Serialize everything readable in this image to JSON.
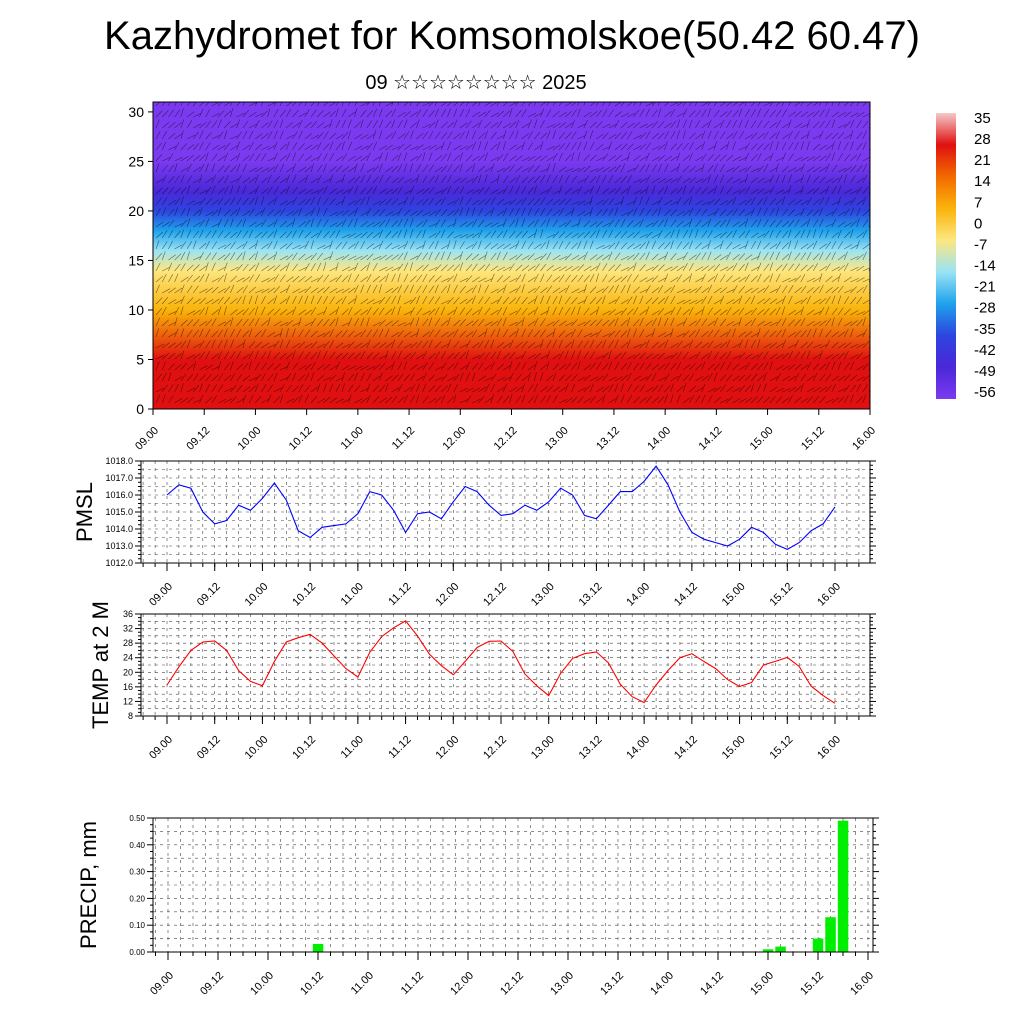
{
  "header": {
    "title": "Kazhydromet for Komsomolskoe(50.42 60.47)",
    "subtitle": "09 ☆☆☆☆☆☆☆☆ 2025"
  },
  "chart_data": [
    {
      "type": "heatmap",
      "title": "",
      "xlabel": "",
      "ylabel": "",
      "x_ticks": [
        "09.00",
        "09.12",
        "10.00",
        "10.12",
        "11.00",
        "11.12",
        "12.00",
        "12.12",
        "13.00",
        "13.12",
        "14.00",
        "14.12",
        "15.00",
        "15.12",
        "16.00"
      ],
      "y_ticks": [
        0,
        5,
        10,
        15,
        20,
        25,
        30
      ],
      "ylim": [
        0,
        31
      ],
      "colorbar": {
        "labels": [
          "35",
          "28",
          "21",
          "14",
          "7",
          "0",
          "-7",
          "-14",
          "-21",
          "-28",
          "-35",
          "-42",
          "-49",
          "-56"
        ],
        "colors": [
          "#f4c9c9",
          "#e01010",
          "#f26a00",
          "#fab30a",
          "#fde780",
          "#9ae3f5",
          "#1fa2ec",
          "#2d44df",
          "#4a28d8",
          "#7c3af0"
        ]
      },
      "profile": [
        {
          "z": 0,
          "v": 28
        },
        {
          "z": 5,
          "v": 20
        },
        {
          "z": 10,
          "v": 6
        },
        {
          "z": 14,
          "v": -7
        },
        {
          "z": 16,
          "v": -16
        },
        {
          "z": 18,
          "v": -30
        },
        {
          "z": 20,
          "v": -38
        },
        {
          "z": 22,
          "v": -48
        },
        {
          "z": 25,
          "v": -55
        },
        {
          "z": 31,
          "v": -52
        }
      ]
    },
    {
      "type": "line",
      "ylabel": "PMSL",
      "ylim": [
        1012,
        1018
      ],
      "y_ticks": [
        "1012.0",
        "1013.0",
        "1014.0",
        "1015.0",
        "1016.0",
        "1017.0",
        "1018.0"
      ],
      "x_ticks": [
        "09.00",
        "09.12",
        "10.00",
        "10.12",
        "11.00",
        "11.12",
        "12.00",
        "12.12",
        "13.00",
        "13.12",
        "14.00",
        "14.12",
        "15.00",
        "15.12",
        "16.00"
      ],
      "color": "#0000ff",
      "series": [
        {
          "values": [
            1016.0,
            1016.6,
            1016.4,
            1015.0,
            1014.3,
            1014.5,
            1015.4,
            1015.1,
            1015.8,
            1016.7,
            1015.7,
            1013.9,
            1013.5,
            1014.1,
            1014.2,
            1014.3,
            1014.9,
            1016.2,
            1016.0,
            1015.1,
            1013.8,
            1014.9,
            1015.0,
            1014.6,
            1015.6,
            1016.5,
            1016.2,
            1015.4,
            1014.8,
            1014.9,
            1015.4,
            1015.1,
            1015.6,
            1016.4,
            1016.0,
            1014.8,
            1014.6,
            1015.4,
            1016.2,
            1016.2,
            1016.8,
            1017.7,
            1016.6,
            1015.0,
            1013.8,
            1013.4,
            1013.2,
            1013.0,
            1013.4,
            1014.1,
            1013.8,
            1013.1,
            1012.8,
            1013.2,
            1013.9,
            1014.3,
            1015.3
          ]
        }
      ]
    },
    {
      "type": "line",
      "ylabel": "TEMP at 2 M",
      "ylim": [
        8,
        36
      ],
      "y_ticks": [
        "8",
        "12",
        "16",
        "20",
        "24",
        "28",
        "32",
        "36"
      ],
      "x_ticks": [
        "09.00",
        "09.12",
        "10.00",
        "10.12",
        "11.00",
        "11.12",
        "12.00",
        "12.12",
        "13.00",
        "13.12",
        "14.00",
        "14.12",
        "15.00",
        "15.12",
        "16.00"
      ],
      "color": "#ff0000",
      "series": [
        {
          "values": [
            16.5,
            21.5,
            26.0,
            28.3,
            28.6,
            26.0,
            20.5,
            17.5,
            16.3,
            23.0,
            28.3,
            29.5,
            30.4,
            28.0,
            24.5,
            21.0,
            18.7,
            25.5,
            29.8,
            32.2,
            34.1,
            30.0,
            25.0,
            21.8,
            19.3,
            23.0,
            26.8,
            28.5,
            28.6,
            25.7,
            19.5,
            16.3,
            13.6,
            19.7,
            23.8,
            25.1,
            25.6,
            22.6,
            16.7,
            13.3,
            11.7,
            16.5,
            20.5,
            24.0,
            25.1,
            23.0,
            21.0,
            18.0,
            16.1,
            17.2,
            22.0,
            23.0,
            24.1,
            21.6,
            16.2,
            13.6,
            11.5
          ]
        }
      ]
    },
    {
      "type": "bar",
      "ylabel": "PRECIP, mm",
      "ylim": [
        0,
        0.5
      ],
      "y_ticks": [
        "0.00",
        "0.10",
        "0.20",
        "0.30",
        "0.40",
        "0.50"
      ],
      "x_ticks": [
        "09.00",
        "09.12",
        "10.00",
        "10.12",
        "11.00",
        "11.12",
        "12.00",
        "12.12",
        "13.00",
        "13.12",
        "14.00",
        "14.12",
        "15.00",
        "15.12",
        "16.00"
      ],
      "color": "#00ee00",
      "series": [
        {
          "values": [
            0,
            0,
            0,
            0,
            0,
            0,
            0,
            0,
            0,
            0,
            0,
            0,
            0.03,
            0,
            0,
            0,
            0,
            0,
            0,
            0,
            0,
            0,
            0,
            0,
            0,
            0,
            0,
            0,
            0,
            0,
            0,
            0,
            0,
            0,
            0,
            0,
            0,
            0,
            0,
            0,
            0,
            0,
            0,
            0,
            0,
            0,
            0,
            0,
            0.01,
            0.02,
            0,
            0,
            0.05,
            0.13,
            0.49,
            0,
            0
          ]
        }
      ]
    }
  ]
}
